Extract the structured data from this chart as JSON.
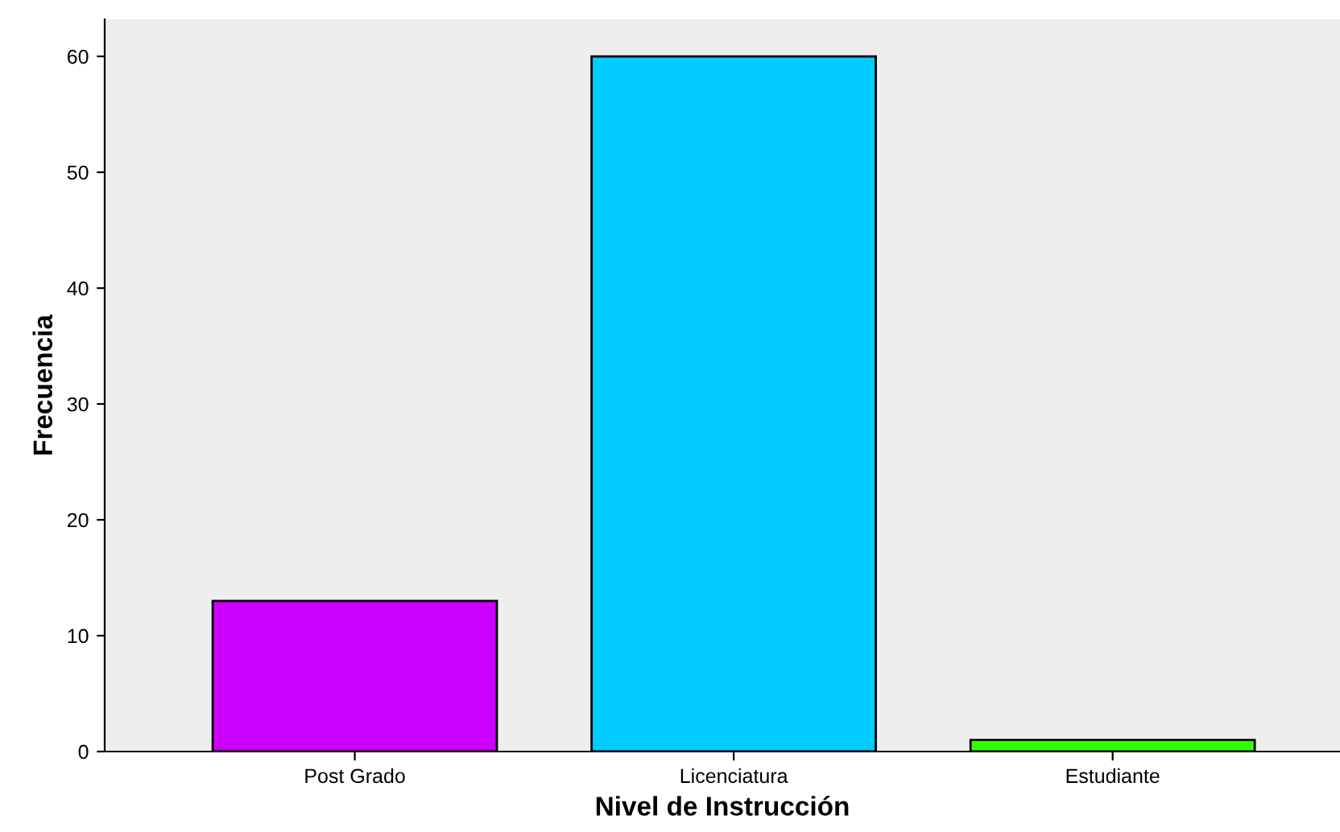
{
  "chart_data": {
    "type": "bar",
    "xlabel": "Nivel de Instrucción",
    "ylabel": "Frecuencia",
    "categories": [
      "Post Grado",
      "Licenciatura",
      "Estudiante"
    ],
    "values": [
      13,
      60,
      1
    ],
    "colors": [
      "#cc00ff",
      "#00ccff",
      "#33ff00"
    ],
    "ylim": [
      0,
      63.2
    ],
    "yticks": [
      0,
      10,
      20,
      30,
      40,
      50,
      60
    ],
    "grid": false
  }
}
